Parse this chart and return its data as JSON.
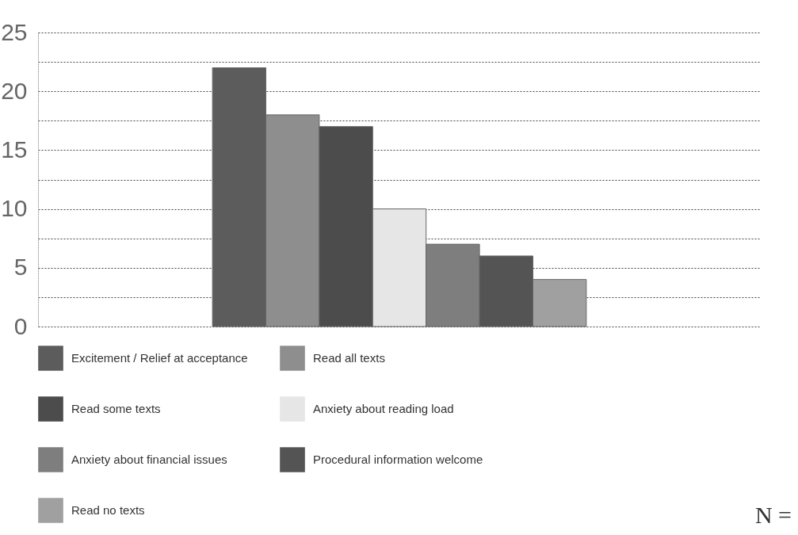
{
  "chart_data": {
    "type": "bar",
    "categories": [
      null
    ],
    "series": [
      {
        "name": "Excitement / Relief at acceptance",
        "color": "#5c5c5c",
        "values": [
          22
        ]
      },
      {
        "name": "Read all texts",
        "color": "#8e8e8e",
        "values": [
          18
        ]
      },
      {
        "name": "Read some texts",
        "color": "#4c4c4c",
        "values": [
          17
        ]
      },
      {
        "name": "Anxiety about reading load",
        "color": "#e6e6e6",
        "values": [
          10
        ]
      },
      {
        "name": "Anxiety about financial issues",
        "color": "#7e7e7e",
        "values": [
          7
        ]
      },
      {
        "name": "Procedural information welcome",
        "color": "#545454",
        "values": [
          6
        ]
      },
      {
        "name": "Read no texts",
        "color": "#a0a0a0",
        "values": [
          4
        ]
      }
    ],
    "ylim": [
      0,
      25
    ],
    "yticks": [
      0,
      {
        "value": 2.5,
        "label": null
      },
      5,
      {
        "value": 7.5,
        "label": null
      },
      10,
      {
        "value": 12.5,
        "label": null
      },
      15,
      {
        "value": 17.5,
        "label": null
      },
      20,
      {
        "value": 22.5,
        "label": null
      },
      25
    ],
    "grid": "y",
    "legend": "bottom",
    "tick_labels": "y",
    "annotations": [
      "N ="
    ]
  }
}
